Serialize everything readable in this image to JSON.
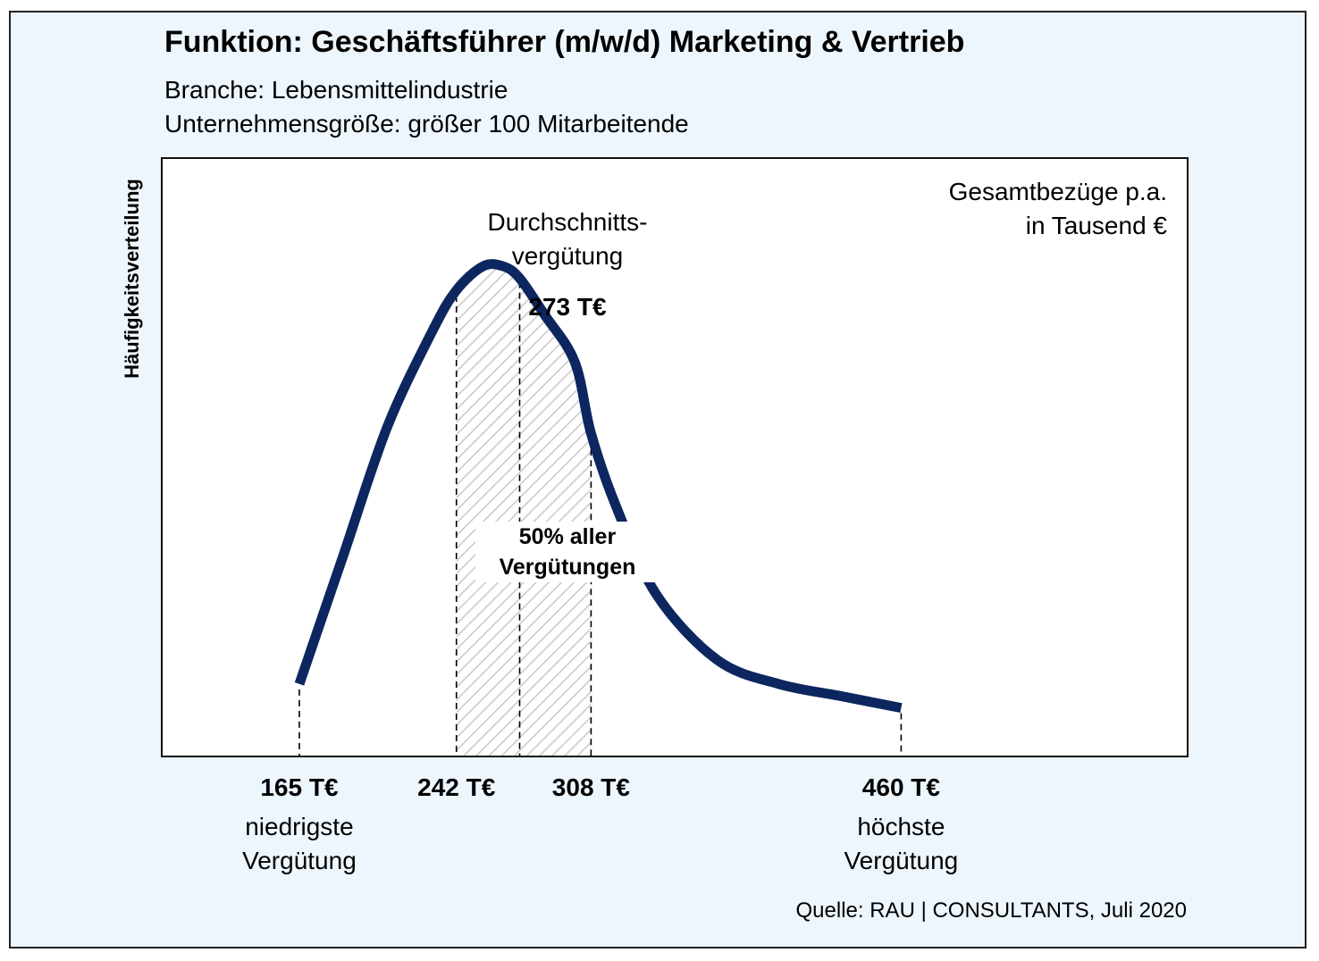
{
  "chart_data": {
    "type": "line",
    "title": "Funktion: Geschäftsführer (m/w/d) Marketing & Vertrieb",
    "subtitle_lines": [
      "Branche: Lebensmittelindustrie",
      "Unternehmensgröße: größer 100 Mitarbeitende"
    ],
    "ylabel": "Häufigkeitsverteilung",
    "unit_lines": [
      "Gesamtbezüge p.a.",
      "in Tausend €"
    ],
    "xlim": [
      98,
      600
    ],
    "ylim": [
      0,
      1
    ],
    "grid": false,
    "series": [
      {
        "x": [
          165,
          186,
          208,
          230,
          242,
          255,
          265,
          273,
          285,
          300,
          308,
          320,
          340,
          370,
          400,
          430,
          460
        ],
        "y": [
          0.12,
          0.33,
          0.55,
          0.71,
          0.78,
          0.82,
          0.82,
          0.8,
          0.74,
          0.66,
          0.54,
          0.42,
          0.27,
          0.16,
          0.12,
          0.1,
          0.08
        ]
      }
    ],
    "shaded_range": [
      242,
      308
    ],
    "shaded_label_lines": [
      "50% aller",
      "Vergütungen"
    ],
    "mean": {
      "x": 273,
      "caption_lines": [
        "Durchschnitts-",
        "vergütung"
      ],
      "label": "273 T€"
    },
    "ticks": [
      {
        "x": 165,
        "label": "165 T€",
        "caption_lines": [
          "niedrigste",
          "Vergütung"
        ]
      },
      {
        "x": 242,
        "label": "242 T€",
        "caption_lines": []
      },
      {
        "x": 308,
        "label": "308 T€",
        "caption_lines": []
      },
      {
        "x": 460,
        "label": "460 T€",
        "caption_lines": [
          "höchste",
          "Vergütung"
        ]
      }
    ],
    "source": "Quelle: RAU | CONSULTANTS, Juli 2020"
  },
  "colors": {
    "curve": "#0d2660",
    "background": "#edf5fd",
    "hatch": "#c8c8c8"
  }
}
